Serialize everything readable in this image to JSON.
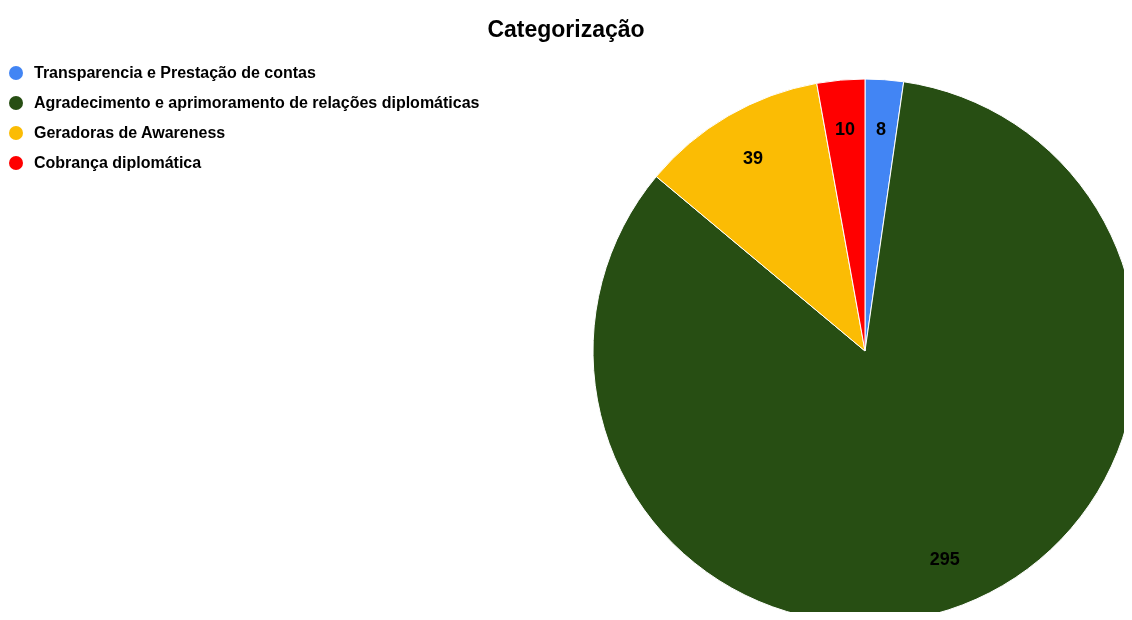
{
  "chart_data": {
    "type": "pie",
    "title": "Categorização",
    "categories": [
      "Transparencia e Prestação de contas",
      "Agradecimento e aprimoramento de relações diplomáticas",
      "Geradoras de Awareness",
      "Cobrança diplomática"
    ],
    "values": [
      8,
      295,
      39,
      10
    ],
    "colors": [
      "#4285f4",
      "#274e13",
      "#fbbc04",
      "#ff0000"
    ],
    "data_labels": true,
    "legend": "top left"
  }
}
